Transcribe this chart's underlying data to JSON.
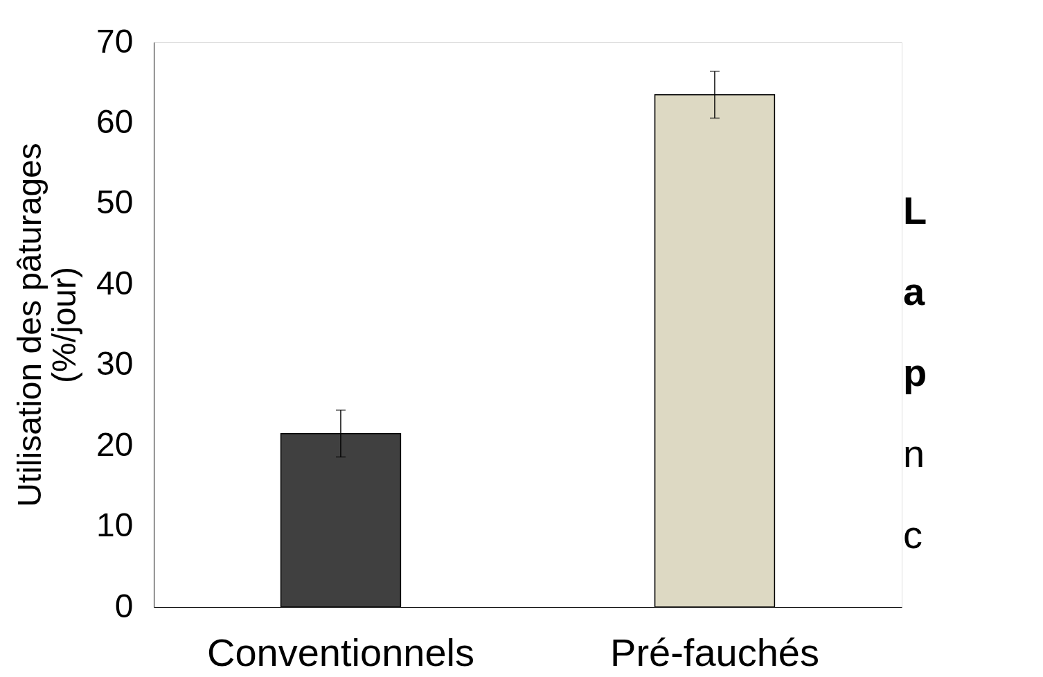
{
  "chart_data": {
    "type": "bar",
    "ylabel": "Utilisation des pâturages\n(%/jour)",
    "categories": [
      "Conventionnels",
      "Pré-fauchés"
    ],
    "values": [
      21.5,
      63.5
    ],
    "colors": [
      "#404040",
      "#ddd9c3"
    ],
    "errors": [
      2.9,
      2.9
    ],
    "ylim": [
      0,
      70
    ],
    "yticks": [
      0,
      10,
      20,
      30,
      40,
      50,
      60,
      70
    ],
    "grid": false,
    "legend": false,
    "annotations": [
      "L",
      "a",
      "p",
      "n",
      "c"
    ]
  }
}
